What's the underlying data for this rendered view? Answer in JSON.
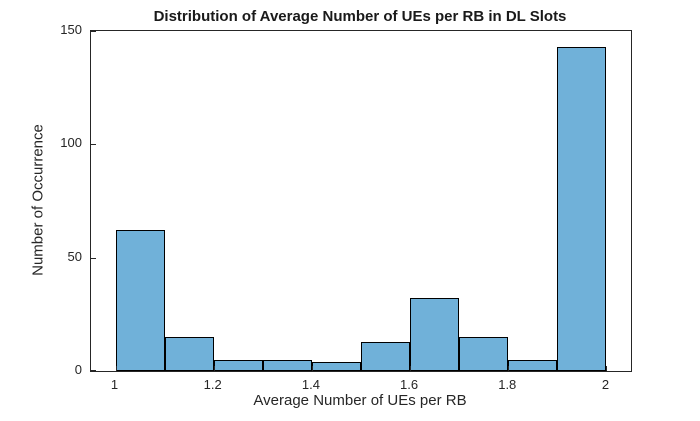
{
  "chart_data": {
    "type": "bar",
    "subtype": "histogram",
    "title": "Distribution of Average Number of UEs per RB in DL Slots",
    "xlabel": "Average Number of UEs per RB",
    "ylabel": "Number of Occurrence",
    "bin_edges": [
      1.0,
      1.1,
      1.2,
      1.3,
      1.4,
      1.5,
      1.6,
      1.7,
      1.8,
      1.9,
      2.0
    ],
    "values": [
      62,
      15,
      5,
      5,
      4,
      13,
      32,
      15,
      5,
      143
    ],
    "xlim": [
      0.95,
      2.05
    ],
    "ylim": [
      0,
      150
    ],
    "xticks": [
      1,
      1.2,
      1.4,
      1.6,
      1.8,
      2
    ],
    "xtick_labels": [
      "1",
      "1.2",
      "1.4",
      "1.6",
      "1.8",
      "2"
    ],
    "yticks": [
      0,
      50,
      100,
      150
    ],
    "ytick_labels": [
      "0",
      "50",
      "100",
      "150"
    ],
    "grid": false,
    "legend": null,
    "colors": {
      "bar_fill": "#70b1d9",
      "bar_edge": "#000000",
      "axis": "#262626",
      "background": "#ffffff"
    }
  }
}
